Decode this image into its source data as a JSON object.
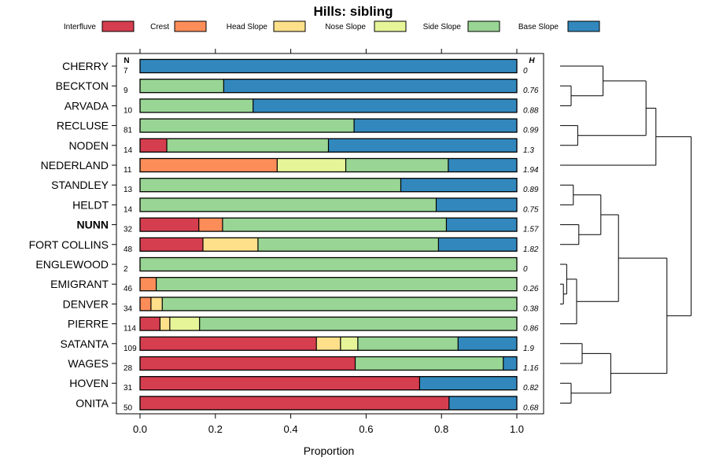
{
  "chart_data": {
    "type": "bar",
    "orientation": "horizontal",
    "stacked": true,
    "title": "Hills: sibling",
    "xlabel": "Proportion",
    "ylabel": "",
    "xlim": [
      0,
      1
    ],
    "xticks": [
      0.0,
      0.2,
      0.4,
      0.6,
      0.8,
      1.0
    ],
    "xtick_labels": [
      "0.0",
      "0.2",
      "0.4",
      "0.6",
      "0.8",
      "1.0"
    ],
    "n_header": "N",
    "h_header": "H",
    "legend_position": "top",
    "series": [
      {
        "name": "Interfluve",
        "color": "#D53E4F"
      },
      {
        "name": "Crest",
        "color": "#FC8D59"
      },
      {
        "name": "Head Slope",
        "color": "#FEE08B"
      },
      {
        "name": "Nose Slope",
        "color": "#E6F598"
      },
      {
        "name": "Side Slope",
        "color": "#99D594"
      },
      {
        "name": "Base Slope",
        "color": "#3288BD"
      }
    ],
    "rows": [
      {
        "label": "CHERRY",
        "n": "7",
        "h": "0",
        "bold": false,
        "values": [
          0,
          0,
          0,
          0,
          0,
          1.0
        ]
      },
      {
        "label": "BECKTON",
        "n": "9",
        "h": "0.76",
        "bold": false,
        "values": [
          0,
          0,
          0,
          0,
          0.222,
          0.778
        ]
      },
      {
        "label": "ARVADA",
        "n": "10",
        "h": "0.88",
        "bold": false,
        "values": [
          0,
          0,
          0,
          0,
          0.3,
          0.7
        ]
      },
      {
        "label": "RECLUSE",
        "n": "81",
        "h": "0.99",
        "bold": false,
        "values": [
          0,
          0,
          0,
          0,
          0.568,
          0.432
        ]
      },
      {
        "label": "NODEN",
        "n": "14",
        "h": "1.3",
        "bold": false,
        "values": [
          0.071,
          0,
          0,
          0,
          0.429,
          0.5
        ]
      },
      {
        "label": "NEDERLAND",
        "n": "11",
        "h": "1.94",
        "bold": false,
        "values": [
          0,
          0.364,
          0,
          0.182,
          0.272,
          0.182
        ]
      },
      {
        "label": "STANDLEY",
        "n": "13",
        "h": "0.89",
        "bold": false,
        "values": [
          0,
          0,
          0,
          0,
          0.692,
          0.308
        ]
      },
      {
        "label": "HELDT",
        "n": "14",
        "h": "0.75",
        "bold": false,
        "values": [
          0,
          0,
          0,
          0,
          0.786,
          0.214
        ]
      },
      {
        "label": "NUNN",
        "n": "32",
        "h": "1.57",
        "bold": true,
        "values": [
          0.156,
          0.063,
          0,
          0,
          0.594,
          0.187
        ]
      },
      {
        "label": "FORT COLLINS",
        "n": "48",
        "h": "1.82",
        "bold": false,
        "values": [
          0.167,
          0,
          0.146,
          0,
          0.479,
          0.208
        ]
      },
      {
        "label": "ENGLEWOOD",
        "n": "2",
        "h": "0",
        "bold": false,
        "values": [
          0,
          0,
          0,
          0,
          1.0,
          0
        ]
      },
      {
        "label": "EMIGRANT",
        "n": "46",
        "h": "0.26",
        "bold": false,
        "values": [
          0,
          0.043,
          0,
          0,
          0.957,
          0
        ]
      },
      {
        "label": "DENVER",
        "n": "34",
        "h": "0.38",
        "bold": false,
        "values": [
          0,
          0.029,
          0.03,
          0,
          0.941,
          0
        ]
      },
      {
        "label": "PIERRE",
        "n": "114",
        "h": "0.86",
        "bold": false,
        "values": [
          0.053,
          0,
          0.026,
          0.079,
          0.842,
          0
        ]
      },
      {
        "label": "SATANTA",
        "n": "109",
        "h": "1.9",
        "bold": false,
        "values": [
          0.468,
          0,
          0.064,
          0.046,
          0.266,
          0.156
        ]
      },
      {
        "label": "WAGES",
        "n": "28",
        "h": "1.16",
        "bold": false,
        "values": [
          0.571,
          0,
          0,
          0,
          0.393,
          0.036
        ]
      },
      {
        "label": "HOVEN",
        "n": "31",
        "h": "0.82",
        "bold": false,
        "values": [
          0.742,
          0,
          0,
          0,
          0,
          0.258
        ]
      },
      {
        "label": "ONITA",
        "n": "50",
        "h": "0.68",
        "bold": false,
        "values": [
          0.82,
          0,
          0,
          0,
          0,
          0.18
        ]
      }
    ],
    "dendrogram": {
      "leaf_order": [
        "CHERRY",
        "BECKTON",
        "ARVADA",
        "RECLUSE",
        "NODEN",
        "NEDERLAND",
        "STANDLEY",
        "HELDT",
        "NUNN",
        "FORT COLLINS",
        "ENGLEWOOD",
        "EMIGRANT",
        "DENVER",
        "PIERRE",
        "SATANTA",
        "WAGES",
        "HOVEN",
        "ONITA"
      ],
      "merges": [
        {
          "a": "L11",
          "b": "L12",
          "height": 0.03
        },
        {
          "a": "N1",
          "b": "L10",
          "height": 0.08
        },
        {
          "a": "L1",
          "b": "L2",
          "height": 0.1
        },
        {
          "a": "L16",
          "b": "L17",
          "height": 0.1
        },
        {
          "a": "L6",
          "b": "L7",
          "height": 0.12
        },
        {
          "a": "L8",
          "b": "L9",
          "height": 0.16
        },
        {
          "a": "N2",
          "b": "L13",
          "height": 0.16
        },
        {
          "a": "L3",
          "b": "L4",
          "height": 0.16
        },
        {
          "a": "L14",
          "b": "L15",
          "height": 0.2
        },
        {
          "a": "N5",
          "b": "N6",
          "height": 0.36
        },
        {
          "a": "L0",
          "b": "N3",
          "height": 0.39
        },
        {
          "a": "N8",
          "b": "N4",
          "height": 0.46
        },
        {
          "a": "N11",
          "b": "N7",
          "height": 0.75
        },
        {
          "a": "N10",
          "b": "N7",
          "height": 0.55
        },
        {
          "a": "N10",
          "b": "N9",
          "height": 0.58
        },
        {
          "a": "N13",
          "b": "L5",
          "height": 0.9
        },
        {
          "a": "N15",
          "b": "N12",
          "height": 1.2
        }
      ]
    }
  }
}
